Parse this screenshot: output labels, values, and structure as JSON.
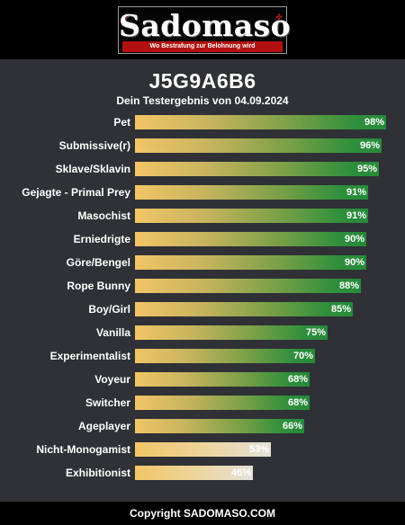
{
  "header": {
    "logo_text": "Sadomaso",
    "logo_tagline": "Wo Bestrafung zur Belohnung wird"
  },
  "result": {
    "title": "J5G9A6B6",
    "subtitle": "Dein Testergebnis von 04.09.2024"
  },
  "colors": {
    "bar_start": "#f2c566",
    "bar_end": "#268a3a",
    "bar_pale_end": "#e3e1da",
    "panel_bg": "#2f3136",
    "tagline_bg": "#b31111"
  },
  "chart_data": {
    "type": "bar",
    "orientation": "horizontal",
    "categories": [
      "Pet",
      "Submissive(r)",
      "Sklave/Sklavin",
      "Gejagte - Primal Prey",
      "Masochist",
      "Erniedrigte",
      "Göre/Bengel",
      "Rope Bunny",
      "Boy/Girl",
      "Vanilla",
      "Experimentalist",
      "Voyeur",
      "Switcher",
      "Ageplayer",
      "Nicht-Monogamist",
      "Exhibitionist"
    ],
    "values": [
      98,
      96,
      95,
      91,
      91,
      90,
      90,
      88,
      85,
      75,
      70,
      68,
      68,
      66,
      53,
      46
    ],
    "labels": [
      "98%",
      "96%",
      "95%",
      "91%",
      "91%",
      "90%",
      "90%",
      "88%",
      "85%",
      "75%",
      "70%",
      "68%",
      "68%",
      "66%",
      "53%",
      "46%"
    ],
    "xlim": [
      0,
      100
    ]
  },
  "footer": {
    "copyright": "Copyright SADOMASO.COM"
  }
}
